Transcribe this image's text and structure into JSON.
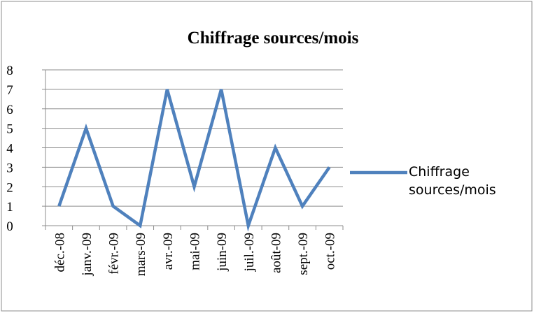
{
  "chart_data": {
    "type": "line",
    "title": "Chiffrage sources/mois",
    "categories": [
      "déc.-08",
      "janv.-09",
      "févr.-09",
      "mars-09",
      "avr.-09",
      "mai-09",
      "juin-09",
      "juil.-09",
      "août-09",
      "sept.-09",
      "oct.-09"
    ],
    "series": [
      {
        "name": "Chiffrage sources/mois",
        "color": "#4f81bd",
        "values": [
          1,
          5,
          1,
          0,
          7,
          2,
          7,
          0,
          4,
          1,
          3
        ]
      }
    ],
    "ylim": [
      0,
      8
    ],
    "yticks": [
      0,
      1,
      2,
      3,
      4,
      5,
      6,
      7,
      8
    ],
    "grid": true,
    "legend": "right"
  }
}
